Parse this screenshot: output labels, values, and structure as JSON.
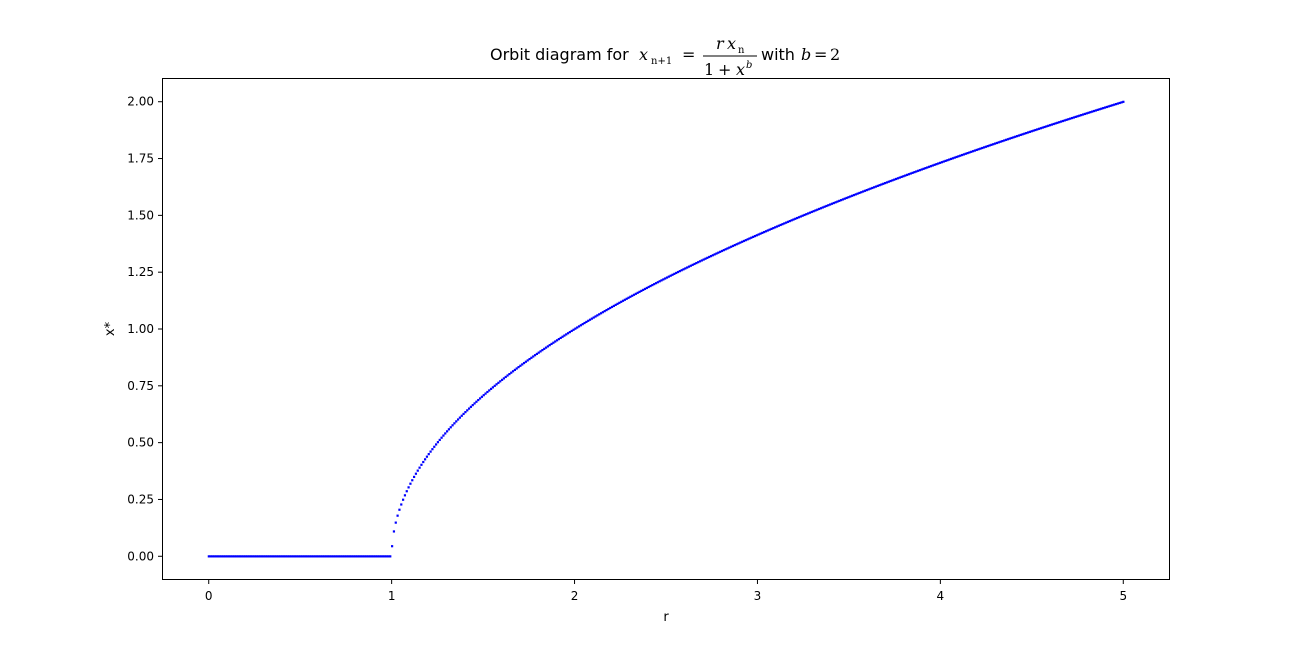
{
  "chart_data": {
    "type": "scatter",
    "title": {
      "prefix": "Orbit diagram for",
      "lhs_var": "x",
      "lhs_sub": "n+1",
      "equals": "=",
      "num_r": "r",
      "num_x": "x",
      "num_sub": "n",
      "den_one": "1",
      "den_plus": "+",
      "den_x": "x",
      "den_sup": "b",
      "with_word": "with",
      "param_var": "b",
      "param_eq": "=",
      "param_val": "2"
    },
    "xlabel": "r",
    "ylabel": "x*",
    "xlim": [
      -0.25,
      5.25
    ],
    "ylim": [
      -0.1,
      2.1
    ],
    "xticks": [
      0,
      1,
      2,
      3,
      4,
      5
    ],
    "yticks": [
      0.0,
      0.25,
      0.5,
      0.75,
      1.0,
      1.25,
      1.5,
      1.75,
      2.0
    ],
    "xtick_labels": [
      "0",
      "1",
      "2",
      "3",
      "4",
      "5"
    ],
    "ytick_labels": [
      "0.00",
      "0.25",
      "0.50",
      "0.75",
      "1.00",
      "1.25",
      "1.50",
      "1.75",
      "2.00"
    ],
    "grid": false,
    "series": [
      {
        "color": "#0000ff",
        "marker": "point",
        "function": "x* = sqrt(r^(1/1) ... ) : x* = sqrt(r - 1) for r > 1, x* = 0 for r <= 1",
        "r_range": [
          0,
          5
        ],
        "sample_count": 500,
        "x": [
          0.0,
          0.25,
          0.5,
          0.75,
          0.99,
          1.0,
          1.01,
          1.02,
          1.05,
          1.1,
          1.2,
          1.3,
          1.5,
          1.75,
          2.0,
          2.5,
          3.0,
          3.5,
          4.0,
          4.5,
          5.0
        ],
        "y": [
          0.0,
          0.0,
          0.0,
          0.0,
          0.0,
          0.02,
          0.1,
          0.14,
          0.22,
          0.32,
          0.45,
          0.55,
          0.71,
          0.87,
          1.0,
          1.22,
          1.41,
          1.58,
          1.73,
          1.87,
          2.0
        ]
      }
    ]
  }
}
